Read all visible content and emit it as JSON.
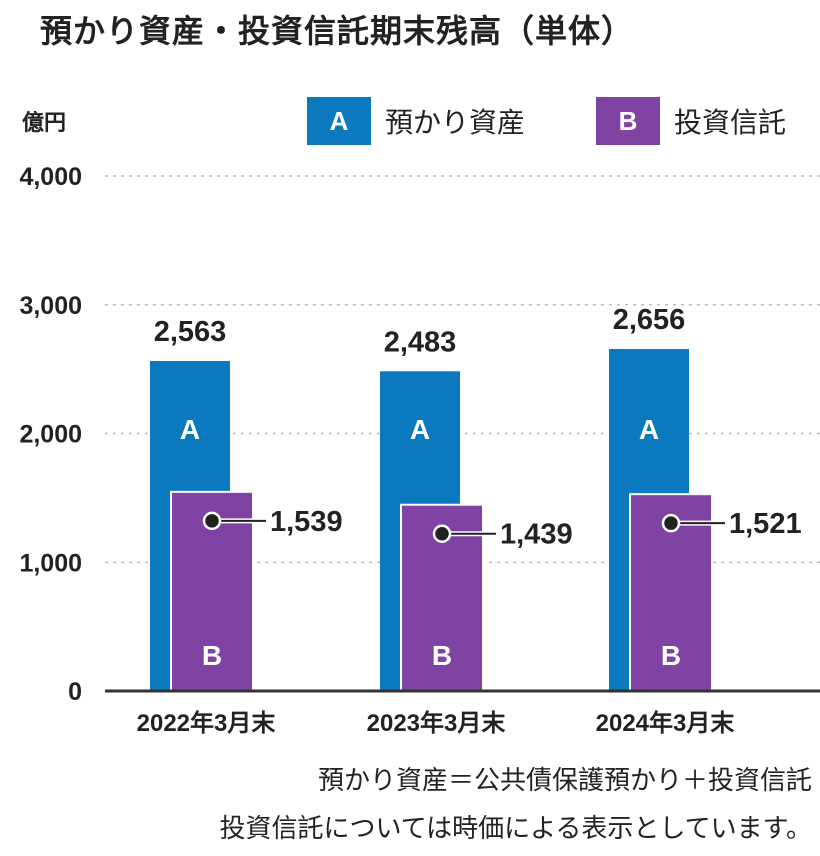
{
  "chart_data": {
    "type": "bar",
    "title": "預かり資産・投資信託期末残高（単体）",
    "ylabel": "億円",
    "categories": [
      "2022年3月末",
      "2023年3月末",
      "2024年3月末"
    ],
    "series": [
      {
        "name": "預かり資産",
        "marker": "A",
        "color": "#0a79bd",
        "values": [
          2563,
          2483,
          2656
        ]
      },
      {
        "name": "投資信託",
        "marker": "B",
        "color": "#7f43a3",
        "values": [
          1539,
          1439,
          1521
        ]
      }
    ],
    "ylim": [
      0,
      4000
    ],
    "yticks": [
      "0",
      "1,000",
      "2,000",
      "3,000",
      "4,000"
    ],
    "value_labels_a": [
      "2,563",
      "2,483",
      "2,656"
    ],
    "value_labels_b": [
      "1,539",
      "1,439",
      "1,521"
    ],
    "grid": true,
    "legend": "top-right"
  },
  "notes": [
    "預かり資産＝公共債保護預かり＋投資信託",
    "投資信託については時価による表示としています。"
  ]
}
